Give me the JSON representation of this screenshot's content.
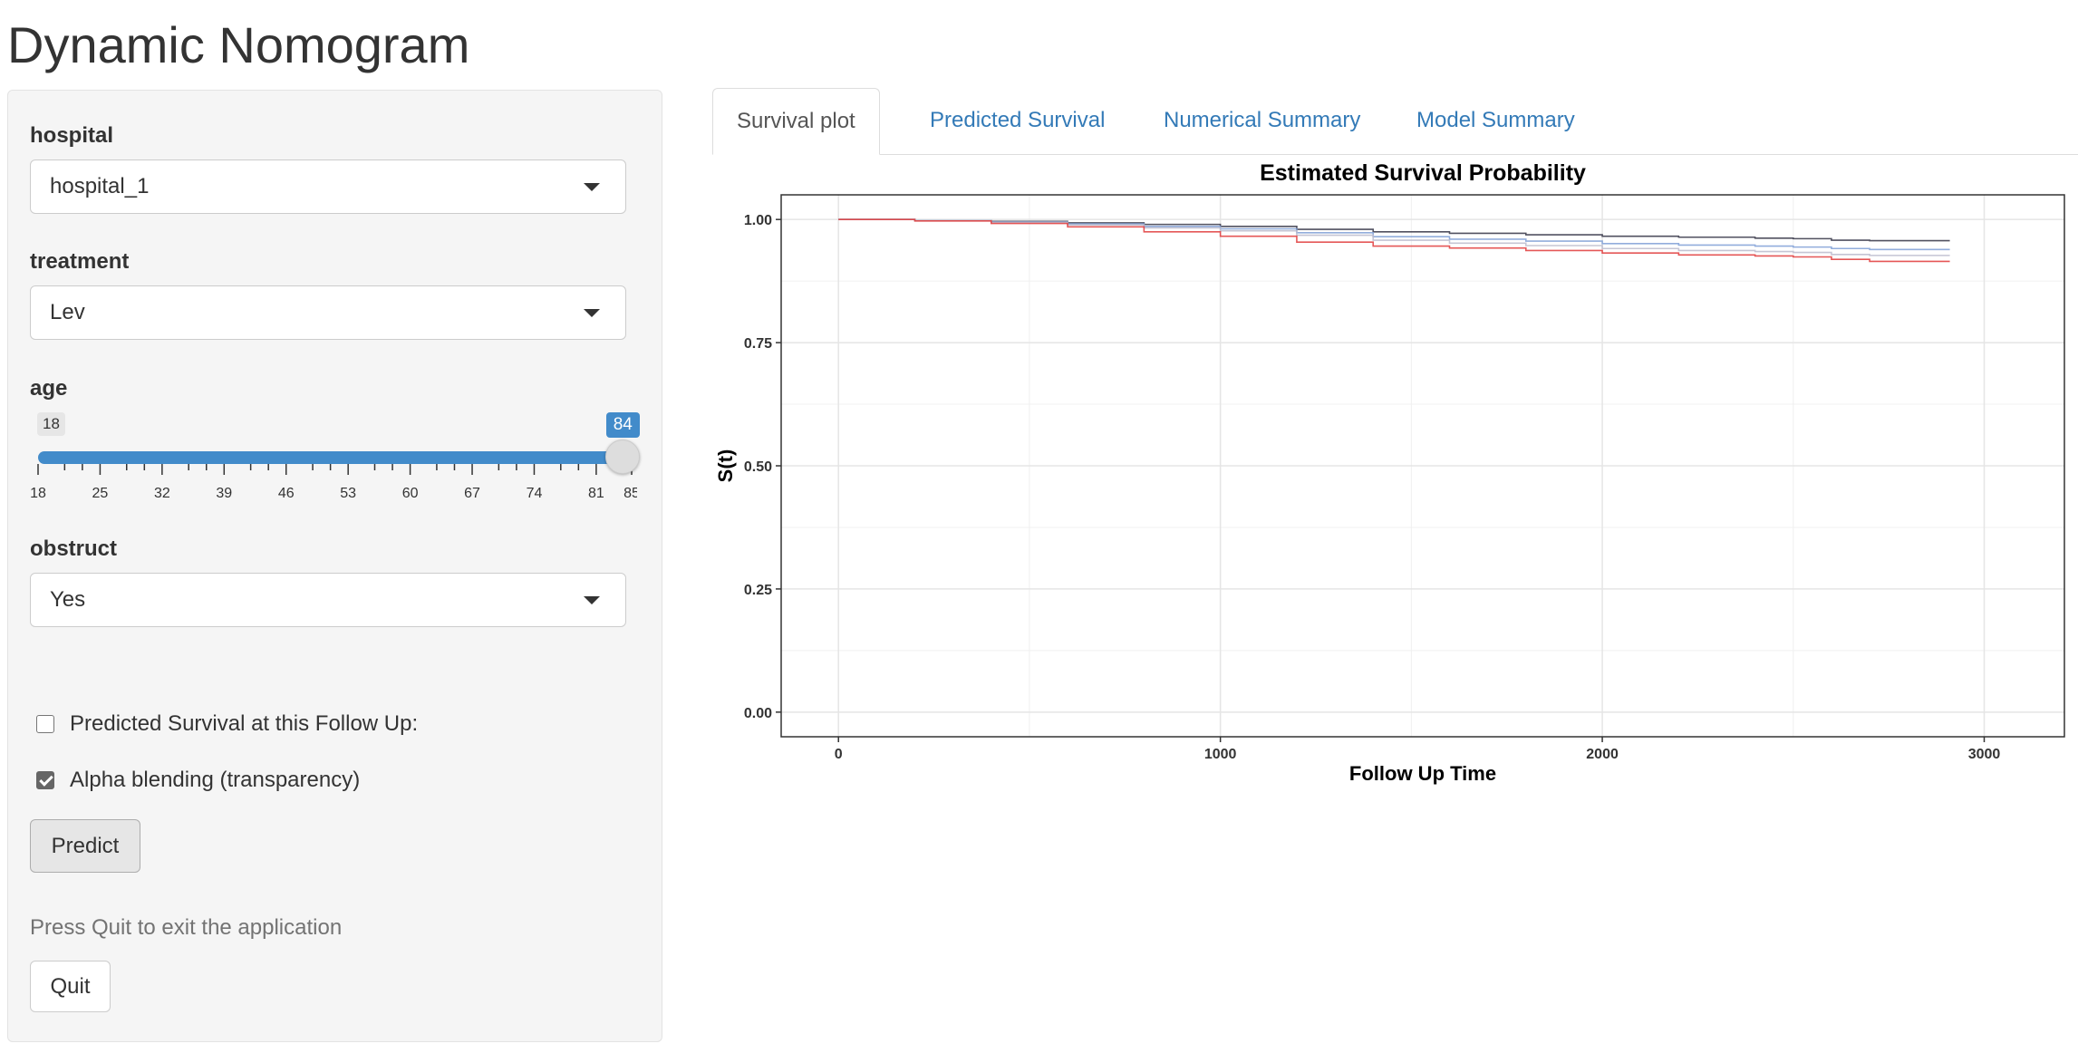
{
  "app": {
    "title": "Dynamic Nomogram"
  },
  "sidebar": {
    "hospital": {
      "label": "hospital",
      "value": "hospital_1"
    },
    "treatment": {
      "label": "treatment",
      "value": "Lev"
    },
    "age": {
      "label": "age",
      "min": 18,
      "max": 85,
      "value": 84,
      "min_label": "18",
      "value_label": "84",
      "major_ticks": [
        "18",
        "25",
        "32",
        "39",
        "46",
        "53",
        "60",
        "67",
        "74",
        "81",
        "85"
      ]
    },
    "obstruct": {
      "label": "obstruct",
      "value": "Yes"
    },
    "predict_followup": {
      "label": "Predicted Survival at this Follow Up:",
      "checked": false
    },
    "alpha_blending": {
      "label": "Alpha blending (transparency)",
      "checked": true
    },
    "predict_button": "Predict",
    "quit_help": "Press Quit to exit the application",
    "quit_button": "Quit"
  },
  "tabs": [
    {
      "label": "Survival plot",
      "active": true
    },
    {
      "label": "Predicted Survival",
      "active": false
    },
    {
      "label": "Numerical Summary",
      "active": false
    },
    {
      "label": "Model Summary",
      "active": false
    }
  ],
  "colors": {
    "accent": "#428bca",
    "link": "#337ab7"
  },
  "chart_data": {
    "type": "line",
    "title": "Estimated Survival Probability",
    "xlabel": "Follow Up Time",
    "ylabel": "S(t)",
    "xlim": [
      -150,
      3210
    ],
    "ylim": [
      -0.05,
      1.05
    ],
    "x_ticks": [
      0,
      1000,
      2000,
      3000
    ],
    "y_ticks": [
      0.0,
      0.25,
      0.5,
      0.75,
      1.0
    ],
    "y_tick_labels": [
      "0.00",
      "0.25",
      "0.50",
      "0.75",
      "1.00"
    ],
    "grid": true,
    "series": [
      {
        "color": "#333344",
        "x": [
          0,
          200,
          400,
          600,
          800,
          1000,
          1200,
          1400,
          1600,
          1800,
          2000,
          2200,
          2400,
          2500,
          2600,
          2700,
          2800,
          2910
        ],
        "y": [
          1.0,
          0.998,
          0.996,
          0.993,
          0.99,
          0.986,
          0.98,
          0.975,
          0.972,
          0.969,
          0.966,
          0.964,
          0.962,
          0.961,
          0.958,
          0.957,
          0.957,
          0.957
        ]
      },
      {
        "color": "#7f9fd6",
        "x": [
          0,
          200,
          400,
          600,
          800,
          1000,
          1200,
          1400,
          1600,
          1800,
          2000,
          2200,
          2400,
          2500,
          2600,
          2700,
          2800,
          2910
        ],
        "y": [
          1.0,
          0.998,
          0.995,
          0.991,
          0.986,
          0.981,
          0.973,
          0.965,
          0.96,
          0.956,
          0.951,
          0.948,
          0.946,
          0.944,
          0.941,
          0.939,
          0.939,
          0.939
        ]
      },
      {
        "color": "#bbbbcc",
        "x": [
          0,
          200,
          400,
          600,
          800,
          1000,
          1200,
          1400,
          1600,
          1800,
          2000,
          2200,
          2400,
          2500,
          2600,
          2700,
          2800,
          2910
        ],
        "y": [
          1.0,
          0.998,
          0.994,
          0.989,
          0.983,
          0.977,
          0.968,
          0.958,
          0.952,
          0.947,
          0.941,
          0.937,
          0.935,
          0.933,
          0.929,
          0.927,
          0.927,
          0.927
        ]
      },
      {
        "color": "#e03a3a",
        "x": [
          0,
          200,
          400,
          600,
          800,
          1000,
          1200,
          1400,
          1600,
          1800,
          2000,
          2200,
          2400,
          2500,
          2600,
          2700,
          2800,
          2910
        ],
        "y": [
          1.0,
          0.997,
          0.992,
          0.985,
          0.975,
          0.966,
          0.954,
          0.946,
          0.942,
          0.937,
          0.932,
          0.928,
          0.926,
          0.924,
          0.919,
          0.915,
          0.915,
          0.915
        ]
      }
    ]
  }
}
